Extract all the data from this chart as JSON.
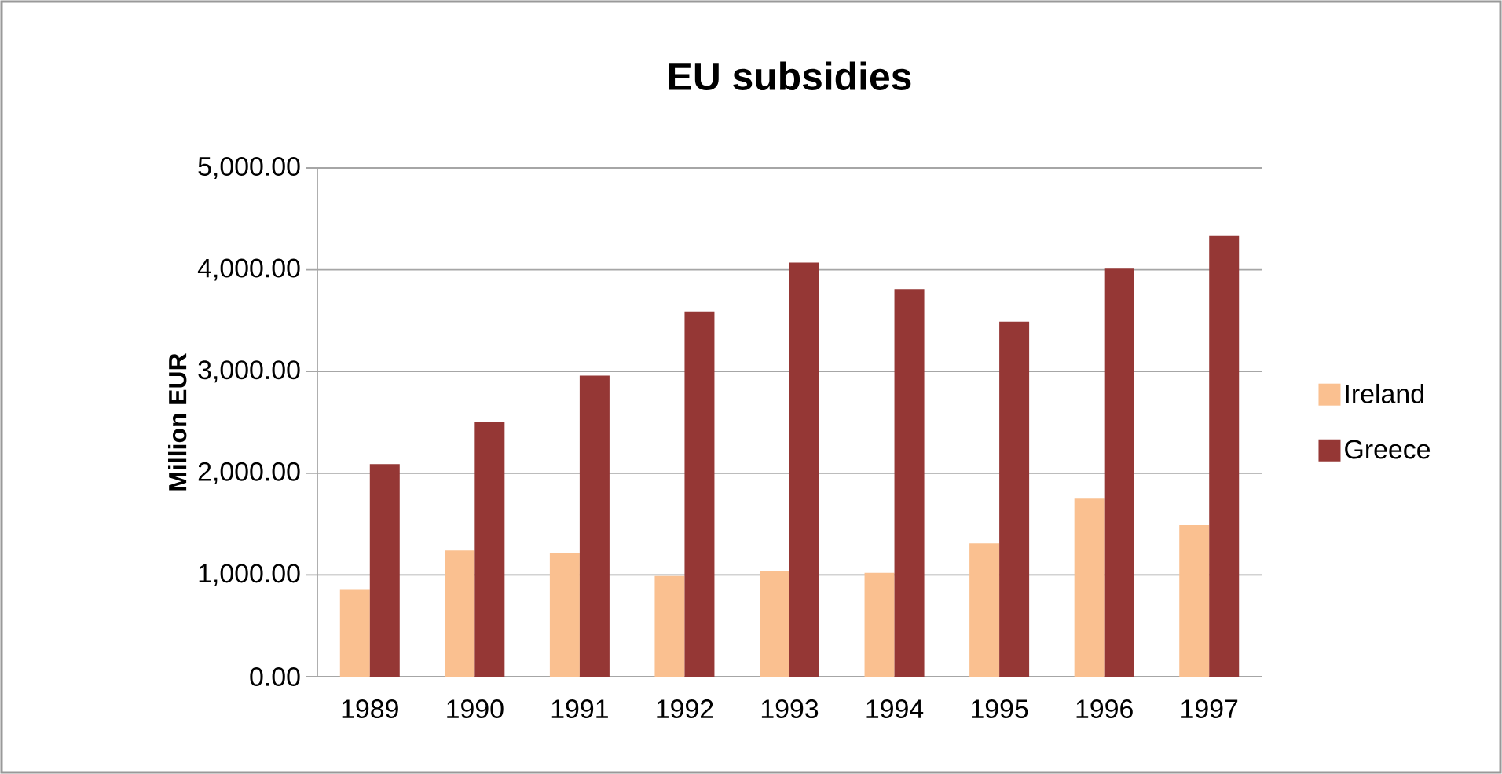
{
  "chart_data": {
    "type": "bar",
    "title": "EU subsidies",
    "ylabel": "Million EUR",
    "categories": [
      "1989",
      "1990",
      "1991",
      "1992",
      "1993",
      "1994",
      "1995",
      "1996",
      "1997"
    ],
    "series": [
      {
        "name": "Ireland",
        "color": "#fac090",
        "values": [
          860,
          1240,
          1220,
          990,
          1040,
          1020,
          1310,
          1750,
          1490
        ]
      },
      {
        "name": "Greece",
        "color": "#953735",
        "values": [
          2090,
          2500,
          2960,
          3590,
          4070,
          3810,
          3490,
          4010,
          4330
        ]
      }
    ],
    "ylim": [
      0,
      5000
    ],
    "yticks": [
      {
        "value": 0,
        "label": "0.00"
      },
      {
        "value": 1000,
        "label": "1,000.00"
      },
      {
        "value": 2000,
        "label": "2,000.00"
      },
      {
        "value": 3000,
        "label": "3,000.00"
      },
      {
        "value": 4000,
        "label": "4,000.00"
      },
      {
        "value": 5000,
        "label": "5,000.00"
      }
    ],
    "grid": "y",
    "legend": "right"
  }
}
